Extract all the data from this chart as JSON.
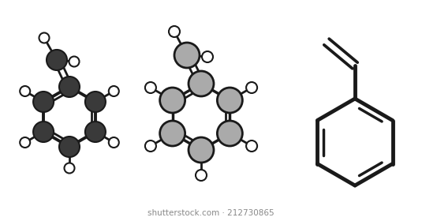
{
  "bg_color": "#ffffff",
  "line_color": "#1a1a1a",
  "atom_dark": "#3a3a3a",
  "atom_gray": "#aaaaaa",
  "atom_H": "#ffffff",
  "watermark": "shutterstock.com · 212730865"
}
